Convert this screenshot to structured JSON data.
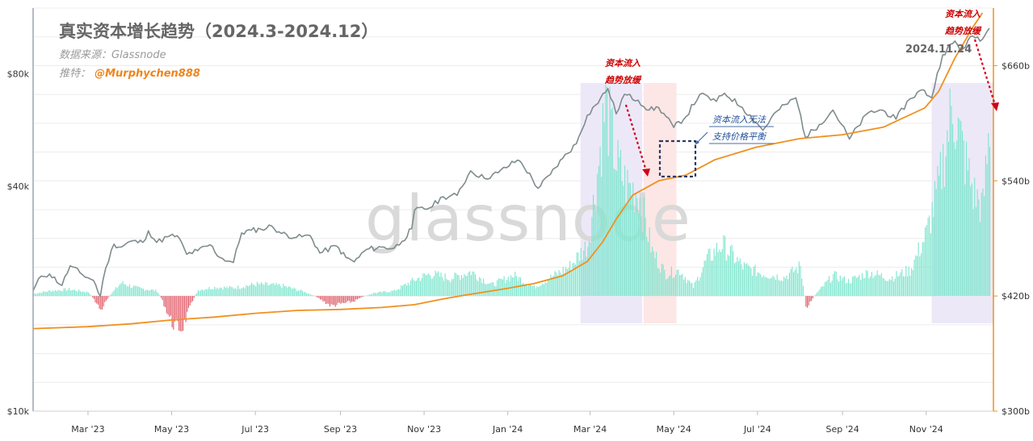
{
  "chart_data": {
    "type": "line",
    "title": "真实资本增长趋势（2024.3-2024.12）",
    "source": "数据来源：Glassnode",
    "author_prefix": "推特：",
    "author_handle": "@Murphychen888",
    "watermark": "glassnode",
    "x_ticks": [
      "Mar '23",
      "May '23",
      "Jul '23",
      "Sep '23",
      "Nov '23",
      "Jan '24",
      "Mar '24",
      "May '24",
      "Jul '24",
      "Sep '24",
      "Nov '24"
    ],
    "y_left_ticks": [
      "$10k",
      "$40k",
      "$80k"
    ],
    "y_right_ticks": [
      "$300b",
      "$420b",
      "$540b",
      "$660b"
    ],
    "y_left_scale": "log",
    "y_left_range": [
      10000,
      120000
    ],
    "y_right_range": [
      300,
      720
    ],
    "y_right_unit": "b",
    "x_range": [
      "2023-01-20",
      "2024-12-20"
    ],
    "series": [
      {
        "role": "price",
        "color": "#7f8c8d",
        "points": [
          [
            "2023-01-20",
            21000
          ],
          [
            "2023-01-26",
            23000
          ],
          [
            "2023-02-01",
            23300
          ],
          [
            "2023-02-10",
            21700
          ],
          [
            "2023-02-16",
            24500
          ],
          [
            "2023-02-25",
            23200
          ],
          [
            "2023-03-05",
            22400
          ],
          [
            "2023-03-10",
            20300
          ],
          [
            "2023-03-14",
            24200
          ],
          [
            "2023-03-20",
            28000
          ],
          [
            "2023-03-25",
            27500
          ],
          [
            "2023-04-01",
            28500
          ],
          [
            "2023-04-10",
            28300
          ],
          [
            "2023-04-14",
            30400
          ],
          [
            "2023-04-20",
            28300
          ],
          [
            "2023-04-28",
            29300
          ],
          [
            "2023-05-05",
            29500
          ],
          [
            "2023-05-12",
            26300
          ],
          [
            "2023-05-20",
            26900
          ],
          [
            "2023-05-29",
            27900
          ],
          [
            "2023-06-05",
            25800
          ],
          [
            "2023-06-15",
            25000
          ],
          [
            "2023-06-21",
            30000
          ],
          [
            "2023-06-28",
            30500
          ],
          [
            "2023-07-05",
            30700
          ],
          [
            "2023-07-13",
            31300
          ],
          [
            "2023-07-20",
            29900
          ],
          [
            "2023-07-31",
            29200
          ],
          [
            "2023-08-10",
            29500
          ],
          [
            "2023-08-17",
            26500
          ],
          [
            "2023-08-29",
            27700
          ],
          [
            "2023-09-05",
            25800
          ],
          [
            "2023-09-11",
            25100
          ],
          [
            "2023-09-20",
            27100
          ],
          [
            "2023-10-01",
            27500
          ],
          [
            "2023-10-10",
            27300
          ],
          [
            "2023-10-16",
            28500
          ],
          [
            "2023-10-23",
            30800
          ],
          [
            "2023-10-25",
            34500
          ],
          [
            "2023-11-05",
            35000
          ],
          [
            "2023-11-15",
            37500
          ],
          [
            "2023-11-25",
            37800
          ],
          [
            "2023-12-05",
            44000
          ],
          [
            "2023-12-15",
            42000
          ],
          [
            "2023-12-25",
            43500
          ],
          [
            "2024-01-08",
            47000
          ],
          [
            "2024-01-11",
            46200
          ],
          [
            "2024-01-23",
            39500
          ],
          [
            "2024-02-01",
            43000
          ],
          [
            "2024-02-10",
            47500
          ],
          [
            "2024-02-20",
            52000
          ],
          [
            "2024-02-28",
            62000
          ],
          [
            "2024-03-05",
            66000
          ],
          [
            "2024-03-14",
            73000
          ],
          [
            "2024-03-20",
            62500
          ],
          [
            "2024-03-26",
            70500
          ],
          [
            "2024-04-05",
            68000
          ],
          [
            "2024-04-13",
            64000
          ],
          [
            "2024-04-20",
            65000
          ],
          [
            "2024-05-01",
            57500
          ],
          [
            "2024-05-10",
            61500
          ],
          [
            "2024-05-20",
            70500
          ],
          [
            "2024-06-01",
            67500
          ],
          [
            "2024-06-07",
            71000
          ],
          [
            "2024-06-20",
            65000
          ],
          [
            "2024-07-05",
            56500
          ],
          [
            "2024-07-15",
            63500
          ],
          [
            "2024-07-29",
            69000
          ],
          [
            "2024-08-05",
            54000
          ],
          [
            "2024-08-15",
            58500
          ],
          [
            "2024-08-25",
            64000
          ],
          [
            "2024-09-06",
            53500
          ],
          [
            "2024-09-20",
            63000
          ],
          [
            "2024-09-30",
            64000
          ],
          [
            "2024-10-10",
            60500
          ],
          [
            "2024-10-20",
            68500
          ],
          [
            "2024-10-29",
            72500
          ],
          [
            "2024-11-05",
            69000
          ],
          [
            "2024-11-13",
            90000
          ],
          [
            "2024-11-22",
            98000
          ],
          [
            "2024-11-26",
            92000
          ],
          [
            "2024-12-05",
            101000
          ],
          [
            "2024-12-12",
            99000
          ],
          [
            "2024-12-17",
            106000
          ]
        ]
      },
      {
        "role": "capital",
        "color": "#f0901e",
        "points": [
          [
            "2023-01-20",
            386
          ],
          [
            "2023-03-01",
            388
          ],
          [
            "2023-04-01",
            391
          ],
          [
            "2023-05-01",
            395
          ],
          [
            "2023-06-01",
            398
          ],
          [
            "2023-07-01",
            402
          ],
          [
            "2023-08-01",
            405
          ],
          [
            "2023-09-01",
            406
          ],
          [
            "2023-10-01",
            408
          ],
          [
            "2023-10-25",
            411
          ],
          [
            "2023-11-15",
            417
          ],
          [
            "2023-12-01",
            421
          ],
          [
            "2024-01-01",
            428
          ],
          [
            "2024-01-20",
            433
          ],
          [
            "2024-02-10",
            441
          ],
          [
            "2024-02-28",
            456
          ],
          [
            "2024-03-10",
            476
          ],
          [
            "2024-03-20",
            500
          ],
          [
            "2024-04-01",
            525
          ],
          [
            "2024-04-20",
            540
          ],
          [
            "2024-05-10",
            546
          ],
          [
            "2024-05-31",
            562
          ],
          [
            "2024-06-30",
            575
          ],
          [
            "2024-08-01",
            584
          ],
          [
            "2024-09-01",
            588
          ],
          [
            "2024-10-01",
            596
          ],
          [
            "2024-10-31",
            616
          ],
          [
            "2024-11-10",
            633
          ],
          [
            "2024-11-22",
            668
          ],
          [
            "2024-12-05",
            700
          ],
          [
            "2024-12-12",
            715
          ]
        ]
      },
      {
        "role": "capital-change-bars",
        "color_positive": "#7be5cd",
        "color_negative": "#e05a66",
        "baseline": 420,
        "bar_scale": [
          -50,
          270
        ],
        "points": [
          [
            "2023-01-20",
            3
          ],
          [
            "2023-02-01",
            7
          ],
          [
            "2023-02-15",
            9
          ],
          [
            "2023-03-01",
            5
          ],
          [
            "2023-03-10",
            -13
          ],
          [
            "2023-03-25",
            18
          ],
          [
            "2023-04-05",
            11
          ],
          [
            "2023-04-20",
            7
          ],
          [
            "2023-05-01",
            -25
          ],
          [
            "2023-05-08",
            -30
          ],
          [
            "2023-05-20",
            8
          ],
          [
            "2023-06-01",
            12
          ],
          [
            "2023-06-15",
            11
          ],
          [
            "2023-07-01",
            16
          ],
          [
            "2023-07-20",
            14
          ],
          [
            "2023-08-05",
            6
          ],
          [
            "2023-08-25",
            -9
          ],
          [
            "2023-09-10",
            -5
          ],
          [
            "2023-09-25",
            4
          ],
          [
            "2023-10-10",
            7
          ],
          [
            "2023-10-25",
            22
          ],
          [
            "2023-11-05",
            30
          ],
          [
            "2023-11-20",
            24
          ],
          [
            "2023-12-05",
            33
          ],
          [
            "2023-12-20",
            15
          ],
          [
            "2024-01-05",
            28
          ],
          [
            "2024-01-20",
            12
          ],
          [
            "2024-02-01",
            25
          ],
          [
            "2024-02-15",
            40
          ],
          [
            "2024-02-28",
            70
          ],
          [
            "2024-03-05",
            150
          ],
          [
            "2024-03-12",
            260
          ],
          [
            "2024-03-20",
            180
          ],
          [
            "2024-03-27",
            150
          ],
          [
            "2024-04-05",
            140
          ],
          [
            "2024-04-15",
            60
          ],
          [
            "2024-04-25",
            30
          ],
          [
            "2024-05-05",
            35
          ],
          [
            "2024-05-15",
            12
          ],
          [
            "2024-05-25",
            50
          ],
          [
            "2024-06-05",
            70
          ],
          [
            "2024-06-20",
            40
          ],
          [
            "2024-07-05",
            30
          ],
          [
            "2024-07-20",
            25
          ],
          [
            "2024-08-01",
            40
          ],
          [
            "2024-08-05",
            -12
          ],
          [
            "2024-08-25",
            28
          ],
          [
            "2024-09-05",
            20
          ],
          [
            "2024-09-20",
            32
          ],
          [
            "2024-10-05",
            24
          ],
          [
            "2024-10-20",
            35
          ],
          [
            "2024-11-01",
            85
          ],
          [
            "2024-11-10",
            150
          ],
          [
            "2024-11-20",
            260
          ],
          [
            "2024-11-27",
            200
          ],
          [
            "2024-12-05",
            140
          ],
          [
            "2024-12-12",
            120
          ],
          [
            "2024-12-17",
            230
          ]
        ]
      }
    ],
    "highlight_regions": [
      {
        "from": "2024-02-23",
        "to": "2024-04-08",
        "color": "#ede8f8"
      },
      {
        "from": "2024-04-09",
        "to": "2024-05-03",
        "color": "#fce6e6"
      },
      {
        "from": "2024-11-05",
        "to": "2024-12-20",
        "color": "#ede8f8"
      }
    ],
    "annotations": {
      "slowdown_1": {
        "line1": "资本流入",
        "line2": "趋势放缓"
      },
      "slowdown_2": {
        "line1": "资本流入",
        "line2": "趋势放缓"
      },
      "balance_note": {
        "line1": "资本流入无法",
        "line2": "支持价格平衡"
      },
      "date_label": "2024.11.24"
    }
  }
}
